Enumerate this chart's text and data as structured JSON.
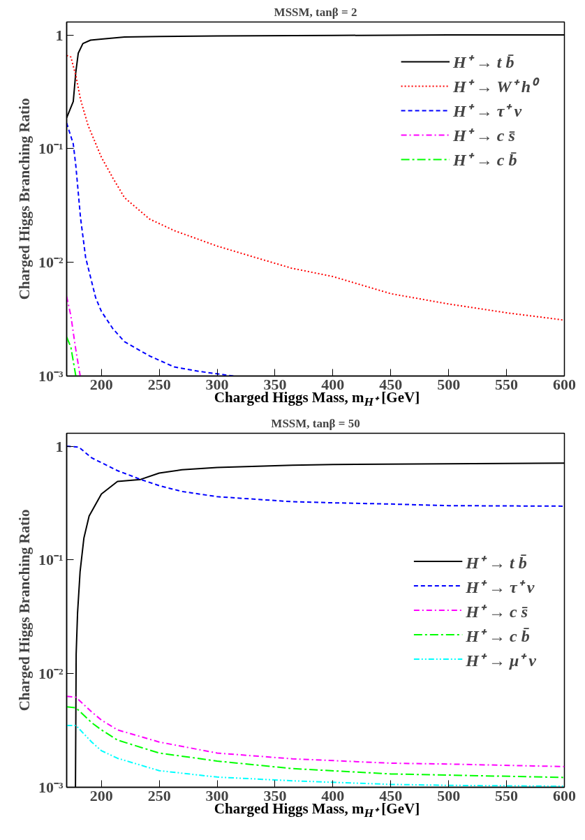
{
  "chart_data": [
    {
      "type": "line",
      "title": "MSSM, tanβ = 2",
      "xlabel": "Charged Higgs Mass, m$_{H⁺}$ [GeV]",
      "ylabel": "Charged Higgs Branching Ratio",
      "log": "y",
      "xlim": [
        170,
        600
      ],
      "ylim": [
        0.001,
        1.3
      ],
      "xticks": [
        200,
        250,
        300,
        350,
        400,
        450,
        500,
        550,
        600
      ],
      "yticks": [
        {
          "value": 0.001,
          "label": "10⁻³"
        },
        {
          "value": 0.01,
          "label": "10⁻²"
        },
        {
          "value": 0.1,
          "label": "10⁻¹"
        },
        {
          "value": 1,
          "label": "1"
        }
      ],
      "grid": false,
      "legend": "top right",
      "series": [
        {
          "name": "H⁺ → t b̄",
          "color": "#000000",
          "line_style": "solid",
          "x": [
            170,
            175.7,
            177.9,
            180,
            184,
            190.6,
            200,
            220,
            250,
            300,
            400,
            500,
            600
          ],
          "values": [
            0.187,
            0.26,
            0.47,
            0.69,
            0.84,
            0.9,
            0.92,
            0.96,
            0.97,
            0.98,
            0.99,
            1.0,
            1.0
          ]
        },
        {
          "name": "H⁺ → W⁺ h⁰",
          "color": "#ff0000",
          "line_style": "dotted",
          "x": [
            170,
            173.6,
            177.9,
            182,
            188.5,
            200,
            210,
            220,
            241.7,
            263,
            300,
            327,
            364,
            400,
            450,
            500,
            550,
            600
          ],
          "values": [
            0.66,
            0.64,
            0.44,
            0.27,
            0.16,
            0.084,
            0.055,
            0.037,
            0.024,
            0.019,
            0.0139,
            0.0115,
            0.0089,
            0.0075,
            0.0053,
            0.0043,
            0.0036,
            0.0031
          ]
        },
        {
          "name": "H⁺ → τ⁺ ν",
          "color": "#0000ff",
          "line_style": "dashed",
          "x": [
            170,
            175.7,
            177.9,
            182,
            186.4,
            195,
            200,
            210,
            220,
            241.7,
            263,
            284,
            314
          ],
          "values": [
            0.168,
            0.11,
            0.071,
            0.0245,
            0.011,
            0.0049,
            0.0037,
            0.0026,
            0.002,
            0.0015,
            0.0012,
            0.0011,
            0.001
          ]
        },
        {
          "name": "H⁺ → c s̄",
          "color": "#ff00ff",
          "line_style": "dashdot",
          "x": [
            170,
            173.6,
            177.9,
            181.7
          ],
          "values": [
            0.005,
            0.0034,
            0.0017,
            0.001
          ]
        },
        {
          "name": "H⁺ → c b̄",
          "color": "#00ff00",
          "line_style": "longdashdot",
          "x": [
            170,
            173.6,
            175.7,
            177.9
          ],
          "values": [
            0.0022,
            0.0018,
            0.00135,
            0.001
          ]
        }
      ]
    },
    {
      "type": "line",
      "title": "MSSM, tanβ = 50",
      "xlabel": "Charged Higgs Mass, m$_{H⁺}$ [GeV]",
      "ylabel": "Charged Higgs Branching Ratio",
      "log": "y",
      "xlim": [
        170,
        600
      ],
      "ylim": [
        0.001,
        1.3
      ],
      "xticks": [
        200,
        250,
        300,
        350,
        400,
        450,
        500,
        550,
        600
      ],
      "yticks": [
        {
          "value": 0.001,
          "label": "10⁻³"
        },
        {
          "value": 0.01,
          "label": "10⁻²"
        },
        {
          "value": 0.1,
          "label": "10⁻¹"
        },
        {
          "value": 1,
          "label": "1"
        }
      ],
      "grid": false,
      "legend": "right",
      "series": [
        {
          "name": "H⁺ → t b̄",
          "color": "#000000",
          "line_style": "solid",
          "x": [
            177.6,
            178.2,
            179.4,
            181.6,
            184.9,
            189.4,
            200,
            213.9,
            233.8,
            250,
            269.6,
            300,
            365,
            400,
            600
          ],
          "values": [
            0.001,
            0.0148,
            0.034,
            0.079,
            0.156,
            0.243,
            0.38,
            0.49,
            0.51,
            0.58,
            0.62,
            0.65,
            0.68,
            0.69,
            0.71
          ]
        },
        {
          "name": "H⁺ → τ⁺ ν",
          "color": "#0000ff",
          "line_style": "dashed",
          "x": [
            170,
            180.6,
            191.6,
            213.9,
            234,
            250,
            269.6,
            300,
            365,
            400,
            450,
            500,
            600
          ],
          "values": [
            1.0,
            0.98,
            0.79,
            0.61,
            0.51,
            0.45,
            0.4,
            0.36,
            0.325,
            0.318,
            0.31,
            0.3,
            0.297
          ]
        },
        {
          "name": "H⁺ → c s̄",
          "color": "#ff00ff",
          "line_style": "dashdot",
          "x": [
            170,
            178,
            191.6,
            200,
            213.9,
            250,
            300,
            365,
            450,
            500,
            600
          ],
          "values": [
            0.0063,
            0.0062,
            0.0046,
            0.0039,
            0.0032,
            0.0025,
            0.002,
            0.00178,
            0.00163,
            0.0016,
            0.00152
          ]
        },
        {
          "name": "H⁺ → c b̄",
          "color": "#00ff00",
          "line_style": "longdashdot",
          "x": [
            170,
            178,
            191.6,
            200,
            213.9,
            250,
            300,
            365,
            450,
            500,
            600
          ],
          "values": [
            0.0051,
            0.005,
            0.0037,
            0.0032,
            0.0026,
            0.002,
            0.0017,
            0.00146,
            0.00131,
            0.00128,
            0.00122
          ]
        },
        {
          "name": "H⁺ → μ⁺ ν",
          "color": "#00ffff",
          "line_style": "dashdotdot",
          "x": [
            170,
            178,
            191.6,
            200,
            213.9,
            250,
            300,
            365,
            450,
            500,
            600
          ],
          "values": [
            0.0035,
            0.0035,
            0.0025,
            0.0021,
            0.0018,
            0.0014,
            0.00123,
            0.00114,
            0.00106,
            0.00104,
            0.00102
          ]
        }
      ]
    }
  ]
}
